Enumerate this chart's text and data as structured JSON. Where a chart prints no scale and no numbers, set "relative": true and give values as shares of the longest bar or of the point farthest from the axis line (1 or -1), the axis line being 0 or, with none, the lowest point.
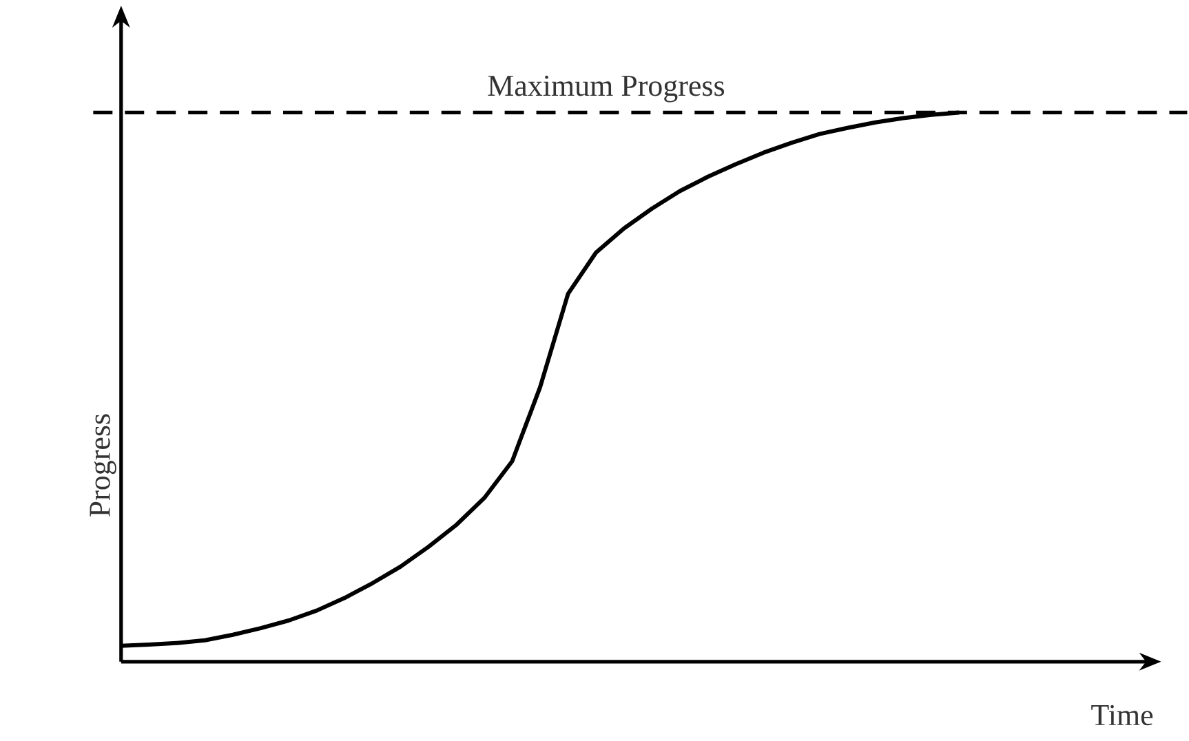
{
  "chart_data": {
    "type": "line",
    "xlabel": "Time",
    "ylabel": "Progress",
    "relative": true,
    "marker": "none",
    "line_style": "solid",
    "categories": [
      null,
      null,
      null,
      null,
      null,
      null,
      null,
      null,
      null,
      null,
      null,
      null,
      null,
      null,
      null,
      null,
      null,
      null,
      null,
      null,
      null,
      null,
      null,
      null,
      null,
      null,
      null,
      null,
      null,
      null,
      null
    ],
    "series": [
      {
        "color": "#000000",
        "values": [
          0.029,
          0.031,
          0.034,
          0.039,
          0.049,
          0.061,
          0.075,
          0.093,
          0.116,
          0.143,
          0.173,
          0.209,
          0.249,
          0.298,
          0.365,
          0.5,
          0.67,
          0.745,
          0.789,
          0.825,
          0.857,
          0.883,
          0.906,
          0.927,
          0.945,
          0.961,
          0.972,
          0.982,
          0.99,
          0.996,
          1.0
        ]
      }
    ],
    "ref_lines": [
      {
        "axis": "y",
        "value": 1,
        "label": "Maximum Progress",
        "color": "#000000",
        "line_style": "dashed"
      }
    ]
  }
}
